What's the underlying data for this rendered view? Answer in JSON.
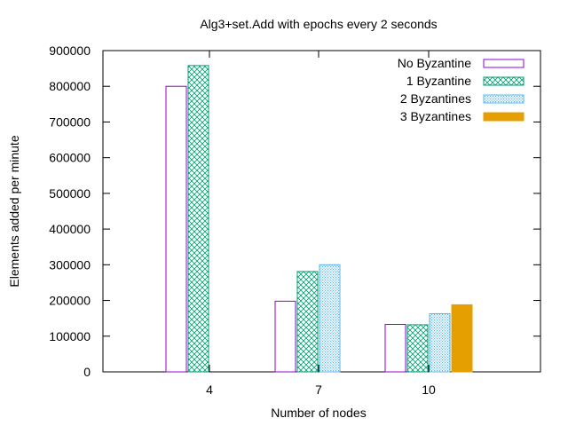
{
  "chart_data": {
    "type": "bar",
    "title": "Alg3+set.Add with epochs every 2 seconds",
    "xlabel": "Number of nodes",
    "ylabel": "Elements added per minute",
    "categories": [
      "4",
      "7",
      "10"
    ],
    "ylim": [
      0,
      900000
    ],
    "yticks": [
      0,
      100000,
      200000,
      300000,
      400000,
      500000,
      600000,
      700000,
      800000,
      900000
    ],
    "grid": false,
    "legend_position": "top-right",
    "series": [
      {
        "name": "No Byzantine",
        "values": [
          800000,
          198000,
          133000
        ],
        "color": "#9400d3",
        "fill": "none"
      },
      {
        "name": "1 Byzantine",
        "values": [
          858000,
          281000,
          132000
        ],
        "color": "#009e73",
        "fill": "crosshatch"
      },
      {
        "name": "2 Byzantines",
        "values": [
          null,
          300000,
          163000
        ],
        "color": "#56b4e9",
        "fill": "dots"
      },
      {
        "name": "3 Byzantines",
        "values": [
          null,
          null,
          188000
        ],
        "color": "#e69f00",
        "fill": "solid"
      }
    ]
  }
}
